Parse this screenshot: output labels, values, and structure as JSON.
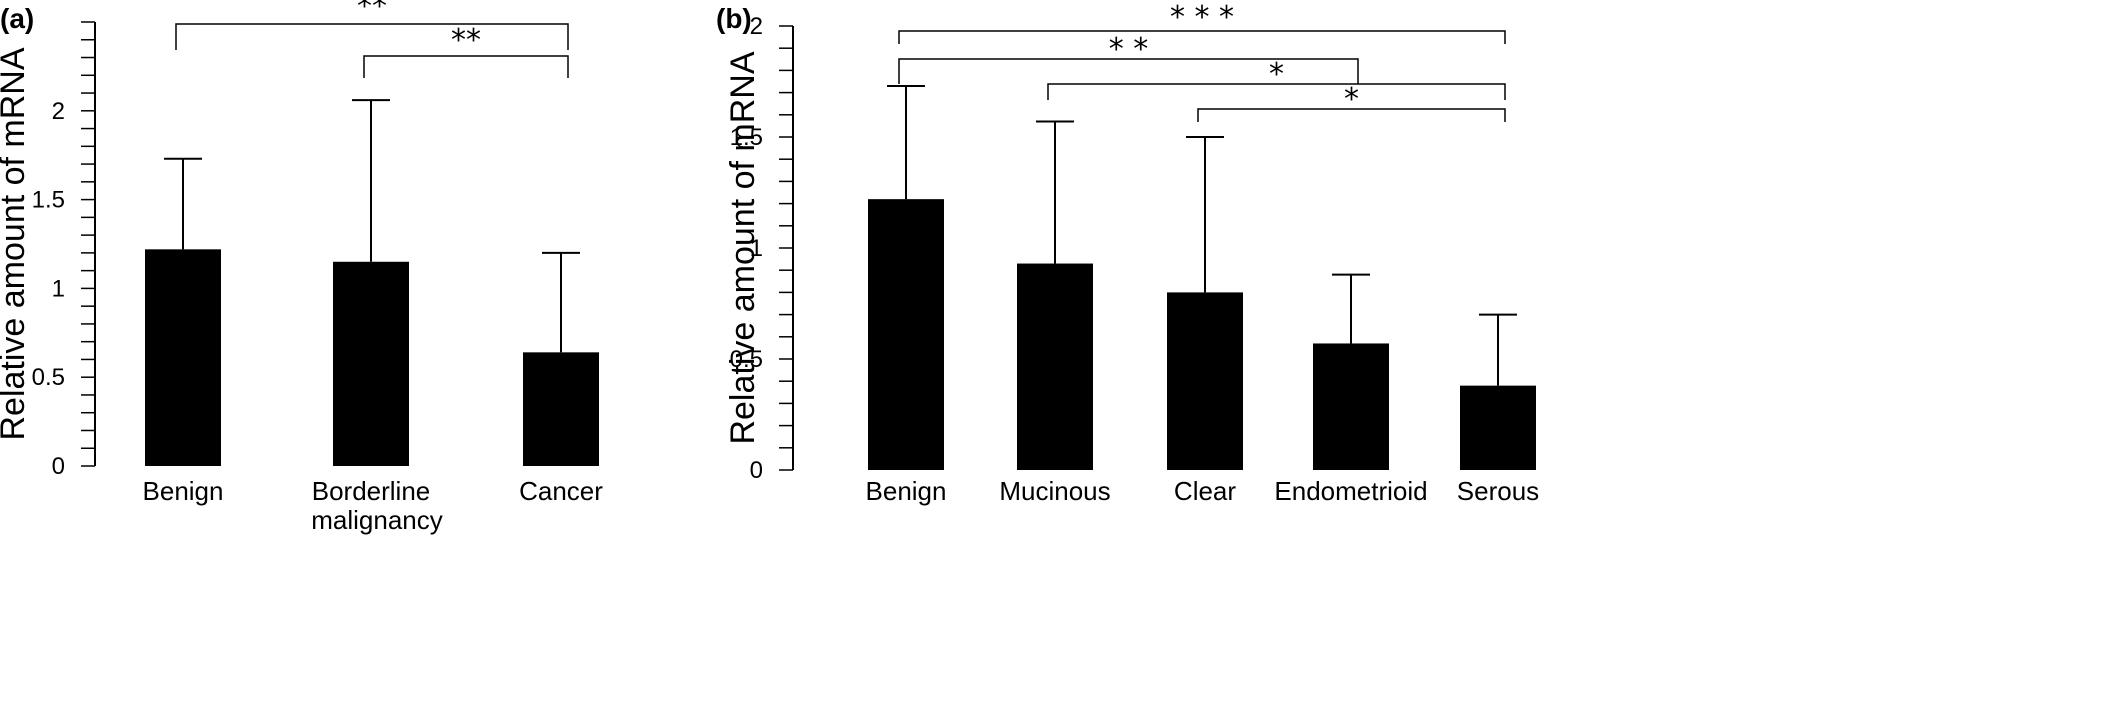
{
  "chart_data": [
    {
      "panel": "(a)",
      "type": "bar",
      "ylabel": "Relative amount of mRNA",
      "ylim": [
        0,
        2.5
      ],
      "yticks": [
        0,
        0.5,
        1,
        1.5,
        2
      ],
      "ytick_labels": [
        "0",
        "0.5",
        "1",
        "1.5",
        "2"
      ],
      "minor_tick_step": 0.1,
      "categories": [
        {
          "lines": [
            "Benign"
          ]
        },
        {
          "lines": [
            "Borderline",
            "malignancy"
          ]
        },
        {
          "lines": [
            "Cancer"
          ]
        }
      ],
      "values": [
        1.22,
        1.15,
        0.64
      ],
      "error_upper": [
        0.51,
        0.91,
        0.56
      ],
      "bar_color": "#000000",
      "significance": [
        {
          "from": 0,
          "to": 2,
          "label": "**"
        },
        {
          "from": 1,
          "to": 2,
          "label": "**"
        }
      ]
    },
    {
      "panel": "(b)",
      "type": "bar",
      "ylabel": "Relative amount of mRNA",
      "ylim": [
        0,
        2
      ],
      "yticks": [
        0,
        0.5,
        1,
        1.5,
        2
      ],
      "ytick_labels": [
        "0",
        "0.5",
        "1",
        "1.5",
        "2"
      ],
      "minor_tick_step": 0.1,
      "categories": [
        {
          "lines": [
            "Benign"
          ]
        },
        {
          "lines": [
            "Mucinous"
          ]
        },
        {
          "lines": [
            "Clear"
          ]
        },
        {
          "lines": [
            "Endometrioid"
          ]
        },
        {
          "lines": [
            "Serous"
          ]
        }
      ],
      "values": [
        1.22,
        0.93,
        0.8,
        0.57,
        0.38
      ],
      "error_upper": [
        0.51,
        0.64,
        0.7,
        0.31,
        0.32
      ],
      "bar_color": "#000000",
      "significance": [
        {
          "from": 0,
          "to": 4,
          "label": "* * *"
        },
        {
          "from": 0,
          "to": 3,
          "label": "* *"
        },
        {
          "from": 1,
          "to": 4,
          "label": "*"
        },
        {
          "from": 2,
          "to": 4,
          "label": "*"
        }
      ]
    }
  ]
}
